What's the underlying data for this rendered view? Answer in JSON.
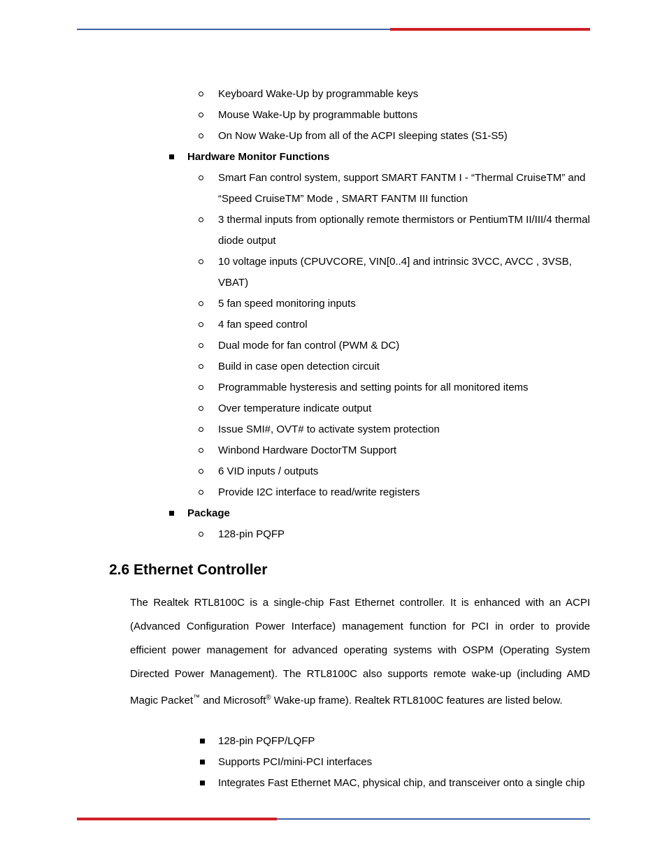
{
  "colors": {
    "rule_blue": "#3a5fa5",
    "rule_red": "#d02028",
    "text": "#000000",
    "background": "#ffffff"
  },
  "pre_list": {
    "items": [
      "Keyboard Wake-Up by programmable keys",
      "Mouse Wake-Up by programmable buttons",
      "On Now Wake-Up from all of the ACPI sleeping states (S1-S5)"
    ]
  },
  "hw_monitor": {
    "title": "Hardware Monitor Functions",
    "items": [
      "Smart Fan control system, support SMART FANTM I - “Thermal CruiseTM” and “Speed CruiseTM” Mode , SMART FANTM III function",
      "3 thermal inputs from optionally remote thermistors or PentiumTM II/III/4 thermal diode output",
      "10 voltage inputs (CPUVCORE, VIN[0..4] and intrinsic 3VCC, AVCC , 3VSB, VBAT)",
      "5 fan speed monitoring inputs",
      "4 fan speed control",
      "Dual mode for fan control (PWM & DC)",
      "Build in case open detection circuit",
      "Programmable hysteresis and setting points for all monitored items",
      "Over temperature indicate output",
      "Issue SMI#, OVT# to activate system protection",
      "Winbond Hardware DoctorTM Support",
      "6 VID inputs / outputs",
      "Provide I2C interface to read/write registers"
    ]
  },
  "package": {
    "title": "Package",
    "items": [
      "128-pin PQFP"
    ]
  },
  "ethernet": {
    "heading": "2.6 Ethernet Controller",
    "paragraph_parts": {
      "p1": "The Realtek RTL8100C is a single-chip Fast Ethernet controller. It is enhanced with an ACPI (Advanced Configuration Power Interface) management function for PCI in order to provide efficient power management for advanced operating systems with OSPM (Operating System Directed Power Management). The RTL8100C also supports remote wake-up (including AMD Magic Packet",
      "sup1": "™",
      "p2": " and Microsoft",
      "sup2": "®",
      "p3": " Wake-up frame). Realtek RTL8100C features are listed below."
    },
    "items": [
      "128-pin PQFP/LQFP",
      "Supports PCI/mini-PCI interfaces",
      "Integrates Fast Ethernet MAC, physical chip, and transceiver onto a single chip"
    ]
  }
}
